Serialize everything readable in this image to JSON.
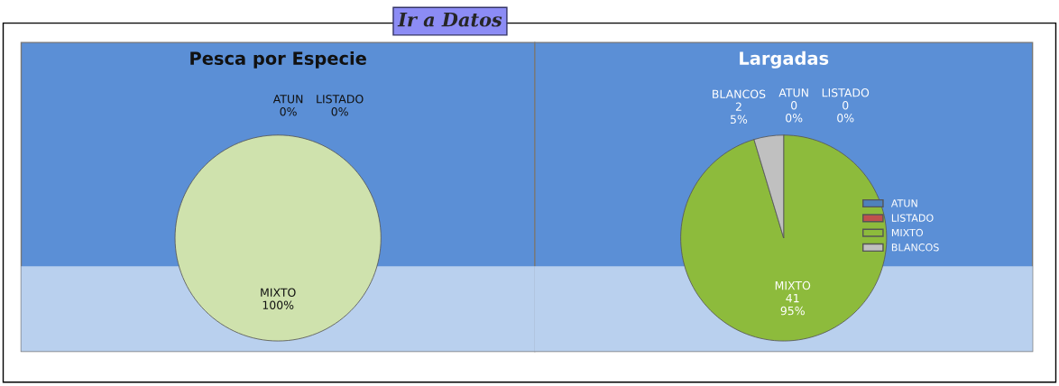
{
  "chart_data": [
    {
      "type": "pie",
      "title": "Pesca por Especie",
      "categories": [
        "ATUN",
        "LISTADO",
        "MIXTO"
      ],
      "values": [
        0,
        0,
        100
      ],
      "colors": [
        "#4f81bd",
        "#c0504d",
        "#cfe2ad"
      ],
      "value_labels": [
        "0%",
        "0%",
        "100%"
      ],
      "legend": false,
      "annotations": [
        "Ir a Datos"
      ]
    },
    {
      "type": "pie",
      "title": "Largadas",
      "categories": [
        "ATUN",
        "LISTADO",
        "MIXTO",
        "BLANCOS"
      ],
      "values": [
        0,
        0,
        41,
        2
      ],
      "colors": [
        "#4f81bd",
        "#c0504d",
        "#8dbb3c",
        "#c0c0c0"
      ],
      "value_labels": [
        "0\n0%",
        "0\n0%",
        "41\n95%",
        "2\n5%"
      ],
      "legend": "right"
    }
  ]
}
